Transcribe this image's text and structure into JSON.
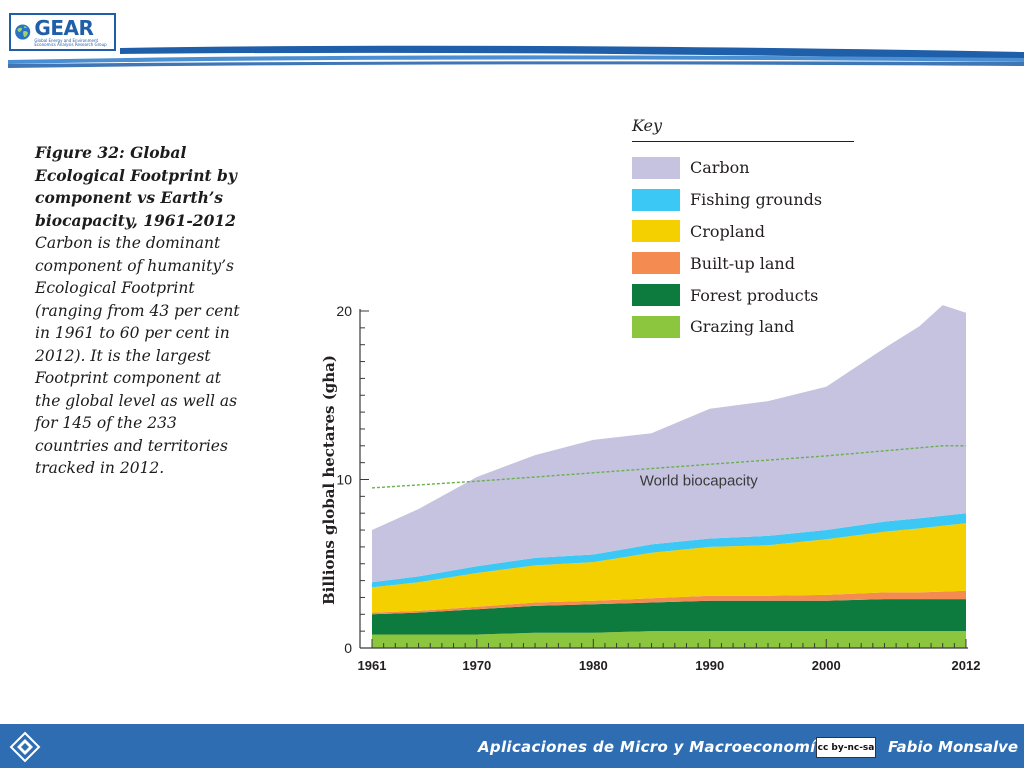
{
  "logo": {
    "word": "GEAR",
    "subtitle": "Global Energy and Environment Economics Analysis Research Group"
  },
  "caption": {
    "title": "Figure 32: Global Ecological Footprint by component vs Earth’s biocapacity, 1961-2012",
    "body": "Carbon is the dominant component of humanity’s Ecological Footprint (ranging from 43 per cent in 1961 to 60 per cent in 2012). It is the largest Footprint component at the global level as well as for 145 of the 233 countries and territories tracked in 2012."
  },
  "key": {
    "heading": "Key",
    "items": [
      {
        "label": "Carbon",
        "color": "#c5c3e0"
      },
      {
        "label": "Fishing grounds",
        "color": "#3cc8f4"
      },
      {
        "label": "Cropland",
        "color": "#f5d000"
      },
      {
        "label": "Built-up land",
        "color": "#f48c52"
      },
      {
        "label": "Forest products",
        "color": "#0d7a3e"
      },
      {
        "label": "Grazing land",
        "color": "#8cc63f"
      }
    ]
  },
  "chart_data": {
    "type": "area",
    "stacked": true,
    "x": [
      1961,
      1965,
      1970,
      1975,
      1980,
      1985,
      1990,
      1995,
      2000,
      2005,
      2008,
      2010,
      2012
    ],
    "xticks": [
      "1961",
      "1970",
      "1980",
      "1990",
      "2000",
      "2012"
    ],
    "ylabel": "Billions global hectares (gha)",
    "ylim": [
      0,
      20
    ],
    "yticks": [
      "0",
      "10",
      "20"
    ],
    "series": [
      {
        "name": "Grazing land",
        "color": "#8cc63f",
        "values": [
          0.8,
          0.8,
          0.8,
          0.9,
          0.9,
          1.0,
          1.0,
          1.0,
          1.0,
          1.0,
          1.0,
          1.0,
          1.0
        ]
      },
      {
        "name": "Forest products",
        "color": "#0d7a3e",
        "values": [
          1.2,
          1.3,
          1.5,
          1.6,
          1.7,
          1.7,
          1.8,
          1.8,
          1.8,
          1.9,
          1.9,
          1.9,
          1.9
        ]
      },
      {
        "name": "Built-up land",
        "color": "#f48c52",
        "values": [
          0.1,
          0.1,
          0.15,
          0.2,
          0.2,
          0.25,
          0.3,
          0.3,
          0.35,
          0.4,
          0.4,
          0.45,
          0.5
        ]
      },
      {
        "name": "Cropland",
        "color": "#f5d000",
        "values": [
          1.5,
          1.7,
          2.0,
          2.2,
          2.3,
          2.7,
          2.9,
          3.0,
          3.3,
          3.6,
          3.8,
          3.9,
          4.0
        ]
      },
      {
        "name": "Fishing grounds",
        "color": "#3cc8f4",
        "values": [
          0.3,
          0.35,
          0.4,
          0.45,
          0.45,
          0.5,
          0.5,
          0.55,
          0.55,
          0.6,
          0.6,
          0.6,
          0.6
        ]
      },
      {
        "name": "Carbon",
        "color": "#c5c3e0",
        "values": [
          3.1,
          4.0,
          5.3,
          6.1,
          6.8,
          6.6,
          7.7,
          8.0,
          8.5,
          10.3,
          11.4,
          12.5,
          11.9
        ]
      }
    ],
    "biocapacity": {
      "label": "World biocapacity",
      "color": "#6ab04c",
      "x": [
        1961,
        1970,
        1980,
        1990,
        2000,
        2010,
        2012
      ],
      "values": [
        9.5,
        9.9,
        10.4,
        10.9,
        11.4,
        12.0,
        12.0
      ]
    }
  },
  "footer": {
    "course": "Aplicaciones de Micro y Macroeconomía",
    "license": "cc by-nc-sa",
    "author": "Fabio Monsalve"
  }
}
